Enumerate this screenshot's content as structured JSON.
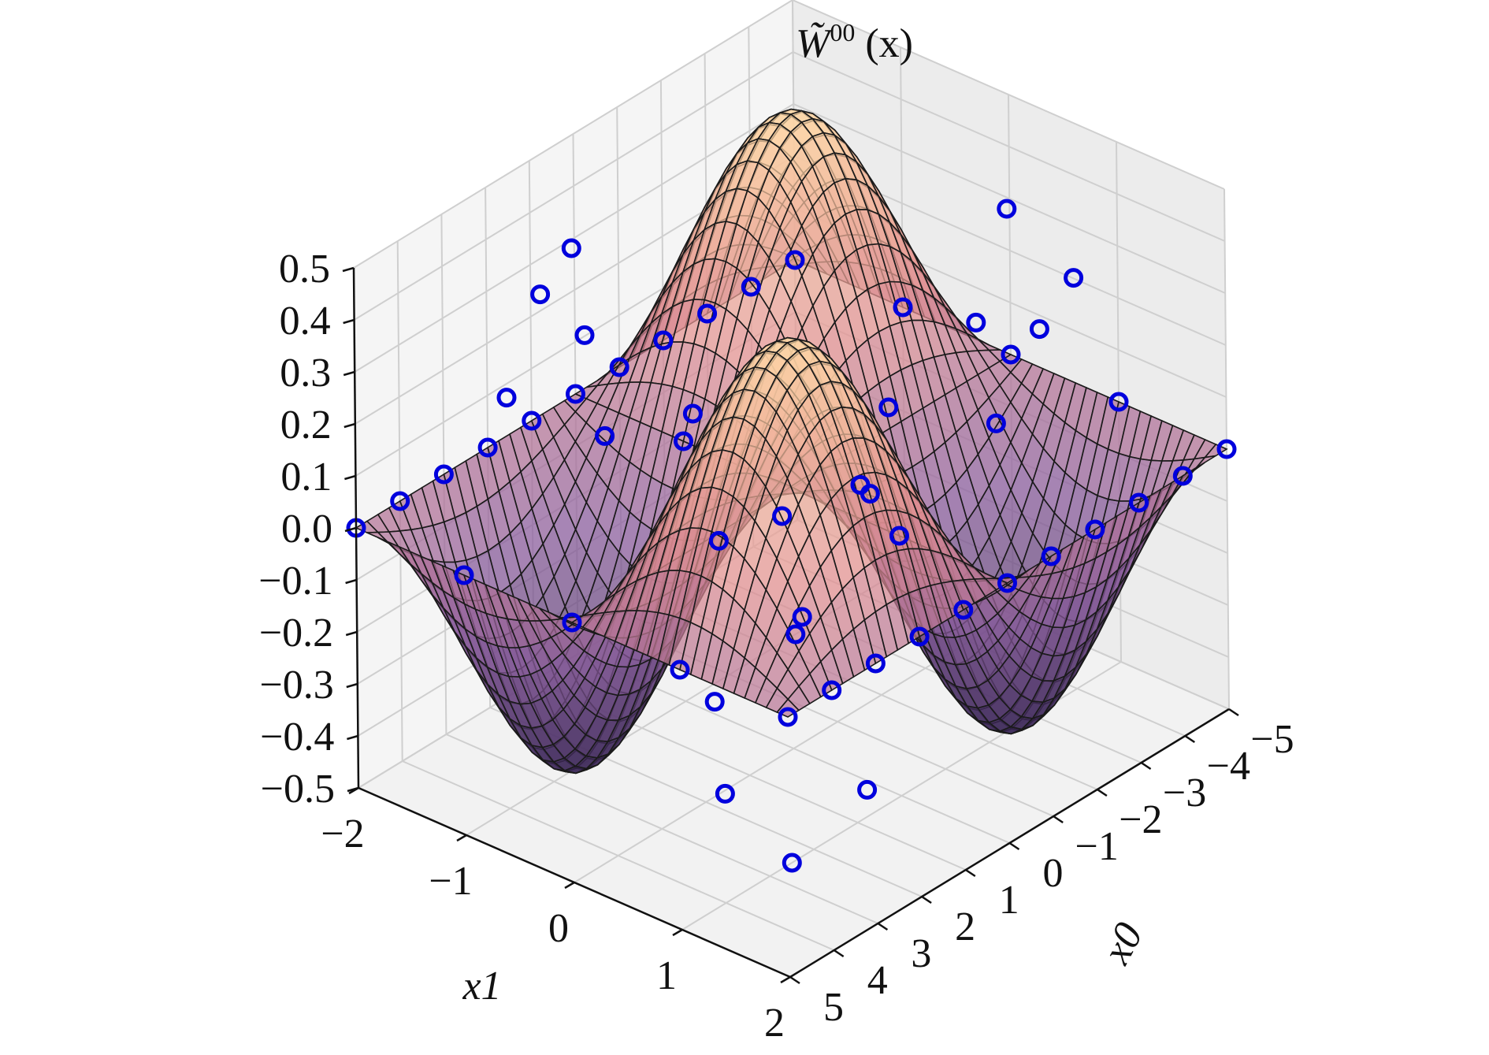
{
  "chart_data": {
    "type": "surface3d",
    "title": "W̃00 (x)",
    "title_parts": {
      "symbol": "W̃",
      "superscript": "00",
      "suffix": " (x)"
    },
    "xlabel": "x0",
    "ylabel": "x1",
    "zlabel": "",
    "x_axis": {
      "name": "x0",
      "range": [
        -5,
        5
      ],
      "ticks": [
        -5,
        -4,
        -3,
        -2,
        -1,
        0,
        1,
        2,
        3,
        4,
        5
      ],
      "tick_labels": [
        "−5",
        "−4",
        "−3",
        "−2",
        "−1",
        "0",
        "1",
        "2",
        "3",
        "4",
        "5"
      ]
    },
    "y_axis": {
      "name": "x1",
      "range": [
        -2,
        2
      ],
      "ticks": [
        -2,
        -1,
        0,
        1,
        2
      ],
      "tick_labels": [
        "−2",
        "−1",
        "0",
        "1",
        "2"
      ]
    },
    "z_axis": {
      "range": [
        -0.5,
        0.5
      ],
      "ticks": [
        -0.5,
        -0.4,
        -0.3,
        -0.2,
        -0.1,
        0.0,
        0.1,
        0.2,
        0.3,
        0.4,
        0.5
      ],
      "tick_labels": [
        "−0.5",
        "−0.4",
        "−0.3",
        "−0.2",
        "−0.1",
        "0.0",
        "0.1",
        "0.2",
        "0.3",
        "0.4",
        "0.5"
      ]
    },
    "grid": true,
    "colormap": [
      "#2f1e4d",
      "#8a5a9c",
      "#e38f8f",
      "#ffd9a6"
    ],
    "surface": {
      "description_function": "0.5*sin(pi*x0/5)*sin(pi*x1/2)",
      "samples_x0": [
        -5,
        -4,
        -3,
        -2,
        -1,
        0,
        1,
        2,
        3,
        4,
        5
      ],
      "samples_x1": [
        -2,
        -1,
        0,
        1,
        2
      ]
    },
    "markers": {
      "style": "circle-open",
      "color": "#0000dd",
      "points": [
        [
          -5,
          -2,
          0.0
        ],
        [
          -5,
          -1,
          0.0
        ],
        [
          -5,
          0,
          0.0
        ],
        [
          -5,
          1,
          0.0
        ],
        [
          -5,
          2,
          0.0
        ],
        [
          5,
          -2,
          0.0
        ],
        [
          5,
          -1,
          0.0
        ],
        [
          5,
          0,
          0.0
        ],
        [
          5,
          1,
          0.0
        ],
        [
          5,
          2,
          0.0
        ],
        [
          -4,
          -2,
          0.0
        ],
        [
          -3,
          -2,
          0.0
        ],
        [
          -2,
          -2,
          0.0
        ],
        [
          -1,
          -2,
          0.0
        ],
        [
          0,
          -2,
          0.0
        ],
        [
          1,
          -2,
          0.0
        ],
        [
          2,
          -2,
          0.0
        ],
        [
          3,
          -2,
          0.0
        ],
        [
          4,
          -2,
          0.0
        ],
        [
          -4,
          2,
          0.0
        ],
        [
          -3,
          2,
          0.0
        ],
        [
          -2,
          2,
          0.0
        ],
        [
          -1,
          2,
          0.0
        ],
        [
          0,
          2,
          0.0
        ],
        [
          1,
          2,
          0.0
        ],
        [
          2,
          2,
          0.0
        ],
        [
          3,
          2,
          0.0
        ],
        [
          4,
          2,
          0.0
        ],
        [
          -2.5,
          1,
          0.5
        ],
        [
          2.5,
          -1,
          0.5
        ],
        [
          -2.5,
          -1,
          -0.5
        ],
        [
          2.5,
          1,
          -0.5
        ],
        [
          -3,
          0.5,
          0.21
        ],
        [
          3,
          -0.5,
          0.21
        ],
        [
          -1,
          0.5,
          0.15
        ],
        [
          1,
          -0.5,
          0.15
        ],
        [
          -3,
          -0.5,
          -0.21
        ],
        [
          3,
          0.5,
          -0.21
        ],
        [
          -1,
          -0.5,
          -0.15
        ],
        [
          1,
          0.5,
          -0.15
        ],
        [
          -4,
          1,
          0.29
        ],
        [
          4,
          -1,
          0.29
        ],
        [
          -4,
          -1,
          -0.29
        ],
        [
          4,
          1,
          -0.29
        ],
        [
          -2,
          1.5,
          0.34
        ],
        [
          2,
          -1.5,
          0.34
        ],
        [
          -2,
          -1.5,
          -0.34
        ],
        [
          2,
          1.5,
          -0.34
        ],
        [
          -1,
          1.5,
          0.21
        ],
        [
          1,
          -1.5,
          0.21
        ],
        [
          0,
          1,
          0.0
        ],
        [
          0,
          -1,
          0.0
        ]
      ]
    },
    "view": {
      "elevation_deg": 28,
      "azimuth_deg": 45
    }
  }
}
